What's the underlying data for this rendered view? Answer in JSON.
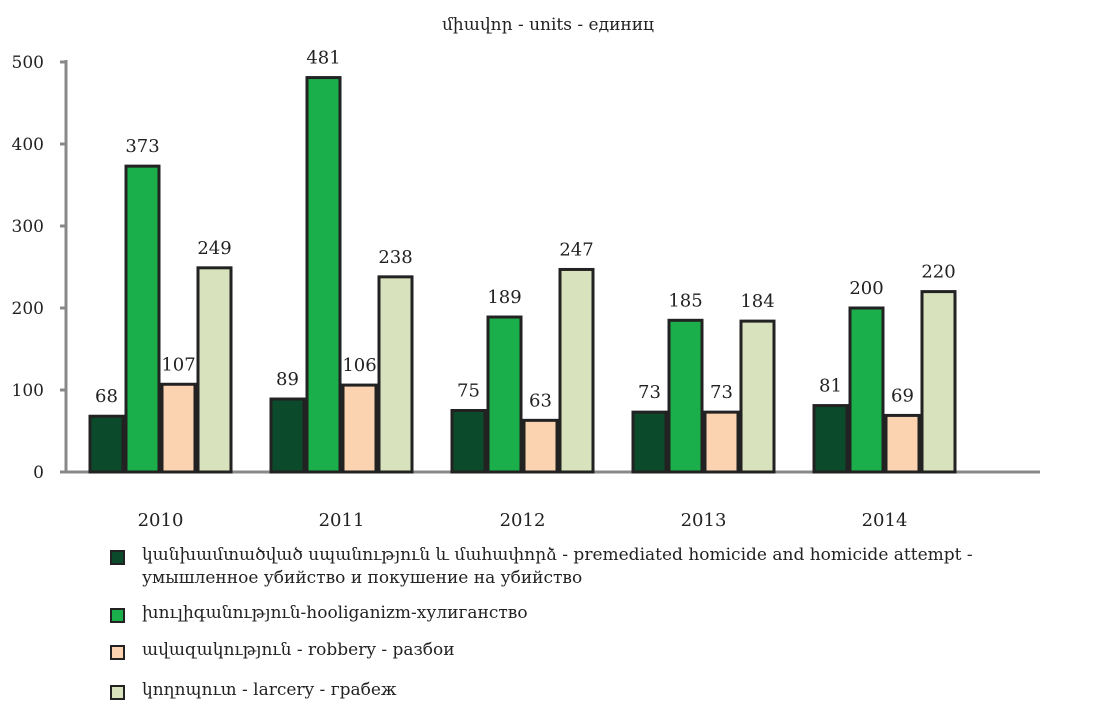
{
  "chart_data": {
    "type": "bar",
    "title": "միավոր - units - единиц",
    "categories": [
      "2010",
      "2011",
      "2012",
      "2013",
      "2014"
    ],
    "series": [
      {
        "name": "կանխամտածված սպանություն և մահափորձ - premediated homicide and homicide attempt - умышленное убийство и покушение на убийство",
        "color": "#0b4a2a",
        "values": [
          68,
          89,
          75,
          73,
          81
        ]
      },
      {
        "name": "խուլիգանություն-hooliganizm-хулиганство",
        "color": "#1aaf4b",
        "values": [
          373,
          481,
          189,
          185,
          200
        ]
      },
      {
        "name": "ավազակություն - robbery - разбои",
        "color": "#fbd3b0",
        "values": [
          107,
          106,
          63,
          73,
          69
        ]
      },
      {
        "name": "կողոպուտ - larcery - грабеж",
        "color": "#d8e3bd",
        "values": [
          249,
          238,
          247,
          184,
          220
        ]
      }
    ],
    "yticks": [
      "0",
      "100",
      "200",
      "300",
      "400",
      "500"
    ],
    "ylim": [
      0,
      500
    ],
    "grid": false,
    "legend_position": "bottom"
  }
}
